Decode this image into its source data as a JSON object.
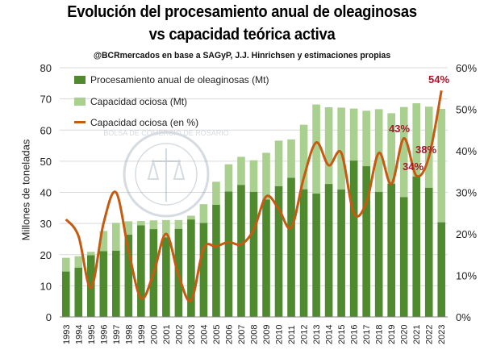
{
  "title_line1": "Evolución del procesamiento anual de oleaginosas",
  "title_line2": "vs capacidad teórica activa",
  "subtitle": "@BCRmercados en base a SAGyP, J.J. Hinrichsen y estimaciones propias",
  "watermark_text": "BOLSA DE COMERCIO DE ROSARIO",
  "colors": {
    "processing": "#4f8a2e",
    "idle": "#a9d08e",
    "idle_pct_line": "#c55a11",
    "annotation": "#a5192b",
    "grid": "#d9d9d9"
  },
  "legend": {
    "processing": "Procesamiento anual de oleaginosas (Mt)",
    "idle": "Capacidad ociosa (Mt)",
    "idle_pct": "Capacidad ociosa (en %)"
  },
  "annotations": [
    {
      "text": "43%",
      "year": "2020"
    },
    {
      "text": "34%",
      "year": "2021"
    },
    {
      "text": "38%",
      "year": "2022"
    },
    {
      "text": "54%",
      "year": "2023"
    }
  ],
  "chart_data": {
    "type": "bar",
    "stacked": true,
    "categories": [
      "1993",
      "1994",
      "1995",
      "1996",
      "1997",
      "1998",
      "1999",
      "2000",
      "2001",
      "2002",
      "2003",
      "2004",
      "2005",
      "2006",
      "2007",
      "2008",
      "2009",
      "2010",
      "2011",
      "2012",
      "2013",
      "2014",
      "2015",
      "2016",
      "2017",
      "2018",
      "2019",
      "2020",
      "2021",
      "2022",
      "2023"
    ],
    "ylabel": "Millones de toneladas",
    "ylim": [
      0,
      80
    ],
    "yticks": [
      0,
      10,
      20,
      30,
      40,
      50,
      60,
      70,
      80
    ],
    "y2lim": [
      0,
      60
    ],
    "y2ticks": [
      "0%",
      "10%",
      "20%",
      "30%",
      "40%",
      "50%",
      "60%"
    ],
    "series": [
      {
        "name": "Procesamiento anual de oleaginosas (Mt)",
        "type": "bar",
        "axis": "left",
        "values": [
          14.6,
          15.8,
          19.8,
          21.1,
          21.3,
          26.4,
          29.4,
          28.2,
          25.5,
          28.3,
          31.3,
          30.2,
          36.0,
          40.3,
          42.4,
          40.2,
          37.7,
          42.0,
          44.7,
          41.0,
          39.6,
          42.7,
          40.9,
          50.2,
          48.4,
          40.2,
          42.8,
          38.5,
          45.1,
          41.5,
          30.4
        ]
      },
      {
        "name": "Capacidad ociosa (Mt)",
        "type": "bar",
        "axis": "left",
        "values": [
          4.4,
          3.7,
          1.1,
          6.5,
          8.9,
          4.3,
          1.4,
          2.8,
          5.6,
          2.8,
          1.2,
          6.0,
          7.4,
          8.7,
          9.0,
          10.1,
          15.0,
          14.6,
          12.3,
          20.7,
          28.6,
          24.6,
          26.3,
          16.7,
          17.8,
          26.5,
          22.6,
          28.9,
          23.5,
          26.0,
          36.4
        ]
      },
      {
        "name": "Capacidad ociosa (en %)",
        "type": "line",
        "axis": "right",
        "values": [
          23.5,
          19.5,
          7.0,
          22.5,
          30.0,
          16.0,
          4.5,
          10.5,
          20.0,
          10.0,
          4.0,
          16.5,
          17.0,
          18.0,
          17.5,
          21.0,
          29.0,
          26.0,
          21.5,
          33.5,
          42.0,
          36.5,
          39.5,
          25.0,
          27.5,
          39.5,
          32.0,
          43.0,
          34.0,
          38.5,
          54.5
        ]
      }
    ]
  }
}
